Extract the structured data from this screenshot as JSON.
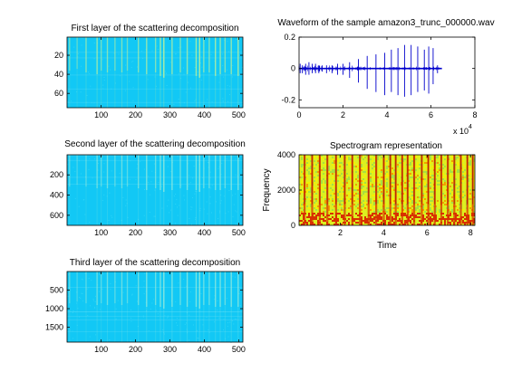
{
  "figure": {
    "background": "#ffffff",
    "axis_color": "#000000"
  },
  "chart_data": [
    {
      "type": "heatmap",
      "title": "First layer of the scattering decomposition",
      "xlabel": "",
      "ylabel": "",
      "xlim": [
        1,
        512
      ],
      "ylim": [
        1,
        75
      ],
      "y_reversed": true,
      "xticks": [
        100,
        200,
        300,
        400,
        500
      ],
      "yticks": [
        20,
        40,
        60
      ],
      "base_color": "#12c8f5",
      "stripe_color": "#b8f0a0",
      "stripe_columns": [
        8,
        30,
        56,
        88,
        100,
        118,
        140,
        160,
        176,
        208,
        232,
        258,
        272,
        282,
        306,
        330,
        350,
        376,
        386,
        398,
        414,
        432,
        446,
        460,
        478,
        498
      ],
      "stripe_strengths": [
        0.5,
        0.4,
        0.6,
        0.7,
        0.5,
        0.6,
        0.5,
        0.6,
        0.5,
        0.6,
        0.7,
        0.6,
        0.8,
        0.9,
        0.7,
        0.6,
        0.7,
        0.8,
        0.9,
        0.6,
        0.6,
        0.8,
        0.7,
        0.6,
        0.7,
        0.8
      ]
    },
    {
      "type": "line",
      "title": "Waveform of the sample amazon3_trunc_000000.wav",
      "xlabel": "",
      "ylabel": "",
      "xlim": [
        0,
        80000
      ],
      "ylim": [
        -0.25,
        0.2
      ],
      "xticks": [
        0,
        2,
        4,
        6,
        8
      ],
      "xtick_multiplier": "x 10",
      "xtick_exponent": "4",
      "yticks": [
        -0.2,
        0,
        0.2
      ],
      "color": "#0000cc",
      "signal_end": 65000,
      "baseline": 0,
      "spikes": {
        "x": [
          500,
          1500,
          3000,
          4500,
          6000,
          7500,
          9000,
          10500,
          12500,
          15000,
          17500,
          20000,
          23000,
          27000,
          31000,
          35000,
          39000,
          42000,
          45000,
          48000,
          51000,
          54000,
          57000,
          59000,
          61000,
          63000
        ],
        "y_max": [
          0.03,
          0.02,
          0.03,
          0.04,
          0.03,
          0.03,
          0.02,
          0.02,
          0.02,
          0.02,
          0.03,
          0.03,
          0.04,
          0.06,
          0.08,
          0.09,
          0.1,
          0.12,
          0.13,
          0.15,
          0.15,
          0.14,
          0.12,
          0.14,
          0.13,
          0.02
        ],
        "y_min": [
          -0.03,
          -0.03,
          -0.04,
          -0.04,
          -0.03,
          -0.03,
          -0.03,
          -0.02,
          -0.03,
          -0.03,
          -0.04,
          -0.04,
          -0.06,
          -0.09,
          -0.13,
          -0.15,
          -0.17,
          -0.15,
          -0.17,
          -0.18,
          -0.17,
          -0.15,
          -0.14,
          -0.16,
          -0.1,
          -0.03
        ]
      }
    },
    {
      "type": "heatmap",
      "title": "Second layer of the scattering decomposition",
      "xlabel": "",
      "ylabel": "",
      "xlim": [
        1,
        512
      ],
      "ylim": [
        1,
        700
      ],
      "y_reversed": true,
      "xticks": [
        100,
        200,
        300,
        400,
        500
      ],
      "yticks": [
        200,
        400,
        600
      ],
      "base_color": "#12c8f5",
      "stripe_color": "#a8f0d8",
      "stripe_columns": [
        8,
        30,
        56,
        88,
        100,
        118,
        140,
        160,
        176,
        208,
        232,
        258,
        272,
        282,
        306,
        330,
        350,
        376,
        386,
        398,
        414,
        432,
        446,
        460,
        478,
        498
      ],
      "stripe_strengths": [
        0.4,
        0.3,
        0.4,
        0.5,
        0.4,
        0.5,
        0.4,
        0.5,
        0.4,
        0.5,
        0.6,
        0.5,
        0.6,
        0.7,
        0.6,
        0.5,
        0.6,
        0.6,
        0.7,
        0.5,
        0.5,
        0.6,
        0.6,
        0.5,
        0.6,
        0.6
      ]
    },
    {
      "type": "heatmap",
      "title": "Spectrogram representation",
      "xlabel": "Time",
      "ylabel": "Frequency",
      "xlim": [
        0.1,
        8.2
      ],
      "ylim": [
        0,
        4000
      ],
      "y_reversed": false,
      "xticks": [
        2,
        4,
        6,
        8
      ],
      "yticks": [
        0,
        2000,
        4000
      ],
      "palette": [
        "#dcf020",
        "#f4f000",
        "#a8e040",
        "#f0a000",
        "#d83000",
        "#a00000"
      ],
      "event_times": [
        0.35,
        0.7,
        1.05,
        1.4,
        1.8,
        2.2,
        2.55,
        2.9,
        3.3,
        3.65,
        4.0,
        4.3,
        4.55,
        4.85,
        5.1,
        5.4,
        5.75,
        6.05,
        6.35,
        6.65,
        6.95,
        7.25,
        7.55,
        7.85,
        8.1
      ]
    },
    {
      "type": "heatmap",
      "title": "Third layer of the scattering decomposition",
      "xlabel": "",
      "ylabel": "",
      "xlim": [
        1,
        512
      ],
      "ylim": [
        1,
        1900
      ],
      "y_reversed": true,
      "xticks": [
        100,
        200,
        300,
        400,
        500
      ],
      "yticks": [
        500,
        1000,
        1500
      ],
      "base_color": "#12c8f5",
      "stripe_color": "#a8f0d8",
      "stripe_columns": [
        8,
        30,
        56,
        88,
        100,
        118,
        140,
        160,
        176,
        208,
        232,
        258,
        272,
        282,
        306,
        330,
        350,
        376,
        386,
        398,
        414,
        432,
        446,
        460,
        478,
        498
      ],
      "stripe_strengths": [
        0.4,
        0.3,
        0.4,
        0.5,
        0.4,
        0.5,
        0.4,
        0.5,
        0.4,
        0.5,
        0.6,
        0.5,
        0.6,
        0.7,
        0.6,
        0.5,
        0.6,
        0.6,
        0.7,
        0.5,
        0.5,
        0.6,
        0.6,
        0.5,
        0.6,
        0.6
      ]
    }
  ]
}
